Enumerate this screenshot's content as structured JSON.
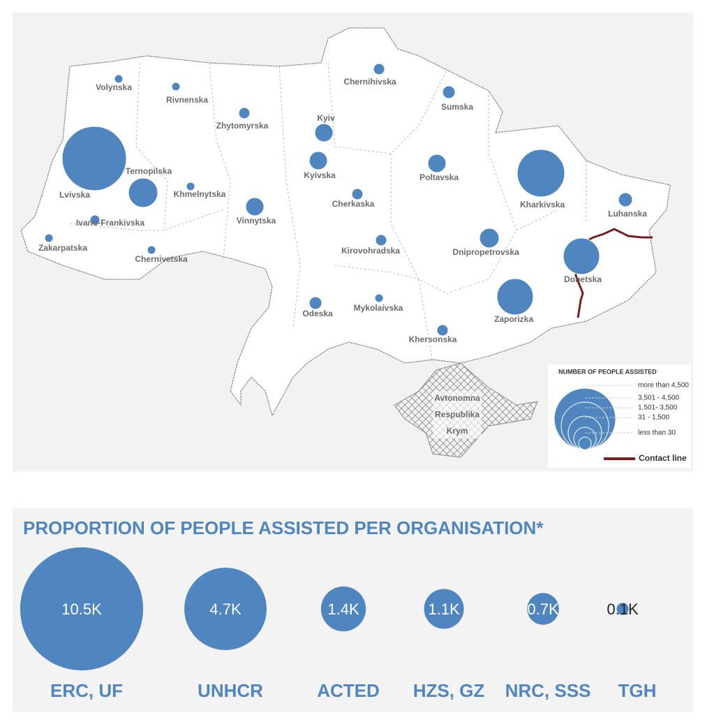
{
  "map": {
    "regions": [
      {
        "name": "Volynska",
        "value": 83
      },
      {
        "name": "Rivnenska",
        "value": 83
      },
      {
        "name": "Zhytomyrska",
        "value": 147
      },
      {
        "name": "Chernihivska",
        "value": 147
      },
      {
        "name": "Sumska",
        "value": 186
      },
      {
        "name": "Kyiv",
        "value": 390
      },
      {
        "name": "Kyivska",
        "value": 390
      },
      {
        "name": "Lvivska",
        "value": 4860
      },
      {
        "name": "Ternopilska",
        "value": 1010
      },
      {
        "name": "Khmelnytska",
        "value": 83
      },
      {
        "name": "Poltavska",
        "value": 390
      },
      {
        "name": "Kharkivska",
        "value": 2650
      },
      {
        "name": "Luhanska",
        "value": 230
      },
      {
        "name": "Vinnytska",
        "value": 390
      },
      {
        "name": "Cherkaska",
        "value": 147
      },
      {
        "name": "Ivano-Frankivska",
        "value": 112
      },
      {
        "name": "Zakarpatska",
        "value": 83
      },
      {
        "name": "Chernivetska",
        "value": 83
      },
      {
        "name": "Kirovohradska",
        "value": 147
      },
      {
        "name": "Dnipropetrovska",
        "value": 450
      },
      {
        "name": "Donetska",
        "value": 1550
      },
      {
        "name": "Odeska",
        "value": 186
      },
      {
        "name": "Mykolaivska",
        "value": 83
      },
      {
        "name": "Zaporizka",
        "value": 1550
      },
      {
        "name": "Khersonska",
        "value": 147
      }
    ],
    "crimea_label": [
      "Avtonomna",
      "Respublika",
      "Krym"
    ],
    "legend": {
      "title": "NUMBER OF PEOPLE ASSISTED",
      "items": [
        "more than 4,500",
        "3,501 - 4,500",
        "1,501- 3,500",
        "31 - 1,500",
        "less than 30"
      ],
      "contact_line": "Contact line"
    }
  },
  "chart_data": {
    "type": "bubble",
    "title": "PROPORTION OF PEOPLE ASSISTED PER ORGANISATION*",
    "categories": [
      "ERC, UF",
      "UNHCR",
      "ACTED",
      "HZS, GZ",
      "NRC, SSS",
      "TGH"
    ],
    "values": [
      10500,
      4700,
      1400,
      1100,
      700,
      100
    ],
    "value_labels": [
      "10.5K",
      "4.7K",
      "1.4K",
      "1.1K",
      "0.7K",
      "0.1K"
    ],
    "color": "#4f86c0"
  }
}
